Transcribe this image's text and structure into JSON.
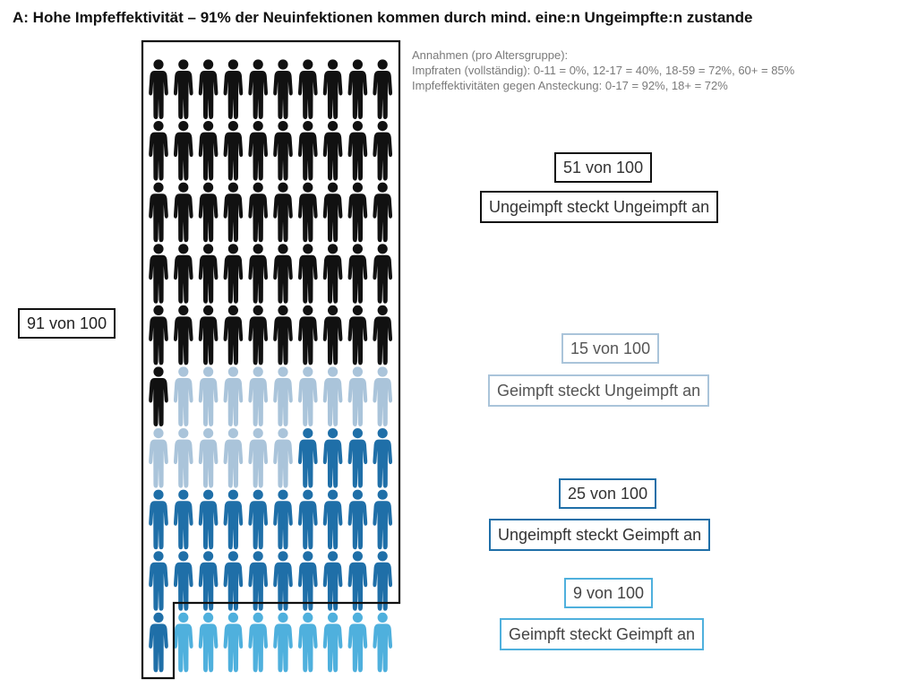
{
  "title": "A: Hohe Impfeffektivität – 91% der Neuinfektionen kommen durch mind. eine:n Ungeimpfte:n zustande",
  "notes": {
    "heading": "Annahmen (pro Altersgruppe):",
    "line1": "Impfraten (vollständig): 0-11 = 0%, 12-17 = 40%, 18-59 = 72%, 60+ = 85%",
    "line2": "Impfeffektivitäten gegen Ansteckung: 0-17 = 92%, 18+ = 72%"
  },
  "total_label": "91 von 100",
  "chart_data": {
    "type": "pictogram",
    "title": "A: Hohe Impfeffektivität – 91% der Neuinfektionen kommen durch mind. eine:n Ungeimpfte:n zustande",
    "unit_total": 100,
    "grid": {
      "rows": 10,
      "cols": 10
    },
    "outlined_total": {
      "label": "91 von 100",
      "value": 91
    },
    "series": [
      {
        "count_label": "51 von 100",
        "name": "Ungeimpft steckt Ungeimpft an",
        "value": 51,
        "color": "#111111"
      },
      {
        "count_label": "15 von 100",
        "name": "Geimpft steckt Ungeimpft an",
        "value": 15,
        "color": "#aac4da"
      },
      {
        "count_label": "25 von 100",
        "name": "Ungeimpft steckt Geimpft an",
        "value": 25,
        "color": "#1f6fa8"
      },
      {
        "count_label": "9 von 100",
        "name": "Geimpft steckt Geimpft an",
        "value": 9,
        "color": "#4fb0dd"
      }
    ]
  }
}
